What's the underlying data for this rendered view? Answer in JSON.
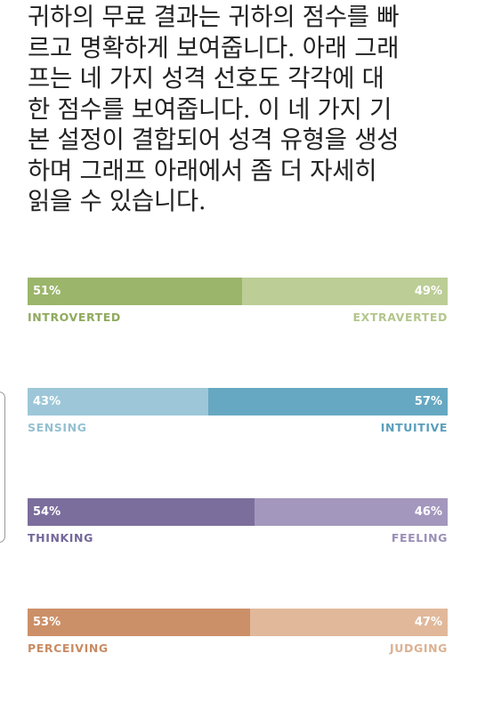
{
  "intro": {
    "lines": [
      "귀하의 무료 결과는 귀하의 점수를 빠",
      "르고 명확하게 보여줍니다. 아래 그래",
      "프는 네 가지 성격 선호도 각각에 대",
      "한 점수를 보여줍니다. 이 네 가지 기",
      "본 설정이 결합되어 성격 유형을 생성",
      "하며 그래프 아래에서 좀 더 자세히",
      "읽을 수 있습니다."
    ]
  },
  "scales": [
    {
      "left": {
        "label": "INTROVERTED",
        "percent": "51%",
        "value": 51,
        "color": "#9bb56b",
        "label_color": "#8faa5d"
      },
      "right": {
        "label": "EXTRAVERTED",
        "percent": "49%",
        "value": 49,
        "color": "#bccd96",
        "label_color": "#b3c68c"
      }
    },
    {
      "left": {
        "label": "SENSING",
        "percent": "43%",
        "value": 43,
        "color": "#9dc7d8",
        "label_color": "#94c0d2"
      },
      "right": {
        "label": "INTUITIVE",
        "percent": "57%",
        "value": 57,
        "color": "#66a8c2",
        "label_color": "#5b9fbb"
      }
    },
    {
      "left": {
        "label": "THINKING",
        "percent": "54%",
        "value": 54,
        "color": "#7b6d9c",
        "label_color": "#74679a"
      },
      "right": {
        "label": "FEELING",
        "percent": "46%",
        "value": 46,
        "color": "#a397bd",
        "label_color": "#9b8fb8"
      }
    },
    {
      "left": {
        "label": "PERCEIVING",
        "percent": "53%",
        "value": 53,
        "color": "#cc9068",
        "label_color": "#c98b62"
      },
      "right": {
        "label": "JUDGING",
        "percent": "47%",
        "value": 47,
        "color": "#e1b89a",
        "label_color": "#dcb091"
      }
    }
  ]
}
